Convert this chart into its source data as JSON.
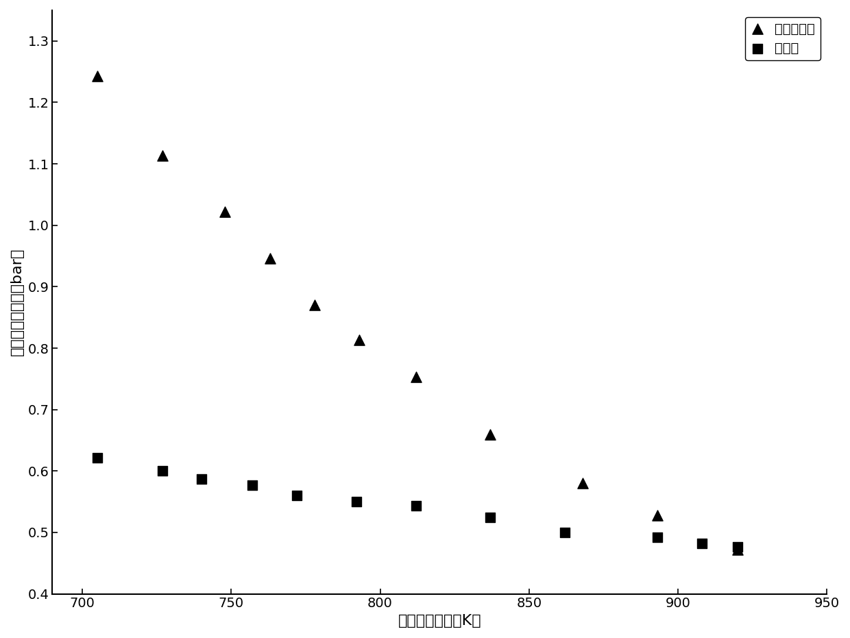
{
  "triangle_x": [
    705,
    727,
    748,
    763,
    778,
    793,
    812,
    837,
    868,
    893,
    920
  ],
  "triangle_y": [
    1.243,
    1.113,
    1.022,
    0.946,
    0.87,
    0.813,
    0.753,
    0.66,
    0.58,
    0.528,
    0.472
  ],
  "square_x": [
    705,
    727,
    740,
    757,
    772,
    792,
    812,
    837,
    862,
    893,
    908,
    920
  ],
  "square_y": [
    0.622,
    0.6,
    0.587,
    0.577,
    0.56,
    0.55,
    0.543,
    0.524,
    0.5,
    0.492,
    0.482,
    0.477
  ],
  "xlabel": "压缩终点温度（K）",
  "ylabel": "初始混合气压力（bar）",
  "legend_triangle": "改变压缩比",
  "legend_square": "本方法",
  "xlim": [
    690,
    950
  ],
  "ylim": [
    0.4,
    1.35
  ],
  "xticks": [
    700,
    750,
    800,
    850,
    900,
    950
  ],
  "yticks": [
    0.4,
    0.5,
    0.6,
    0.7,
    0.8,
    0.9,
    1.0,
    1.1,
    1.2,
    1.3
  ],
  "marker_size_tri": 120,
  "marker_size_sq": 100,
  "bg_color": "#ffffff",
  "text_color": "#000000"
}
